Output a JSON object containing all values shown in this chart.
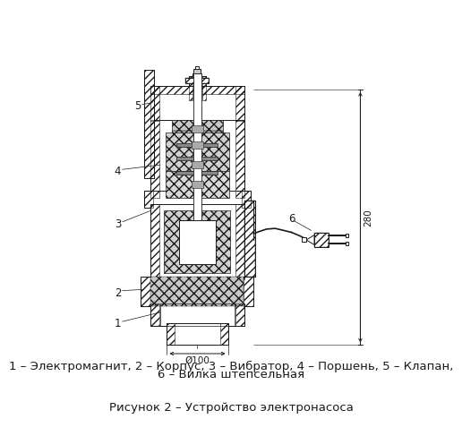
{
  "caption_line1": "1 – Электромагнит, 2 – Корпус, 3 – Вибратор, 4 – Поршень, 5 – Клапан,",
  "caption_line2": "6 – Вилка штепсельная",
  "figure_caption": "Рисунок 2 – Устройство электронасоса",
  "dim_width": "Ø100",
  "dim_height": "280",
  "bg_color": "#ffffff",
  "line_color": "#1a1a1a",
  "font_size_caption": 9.5,
  "font_size_figure": 9.5,
  "font_size_labels": 8.5
}
